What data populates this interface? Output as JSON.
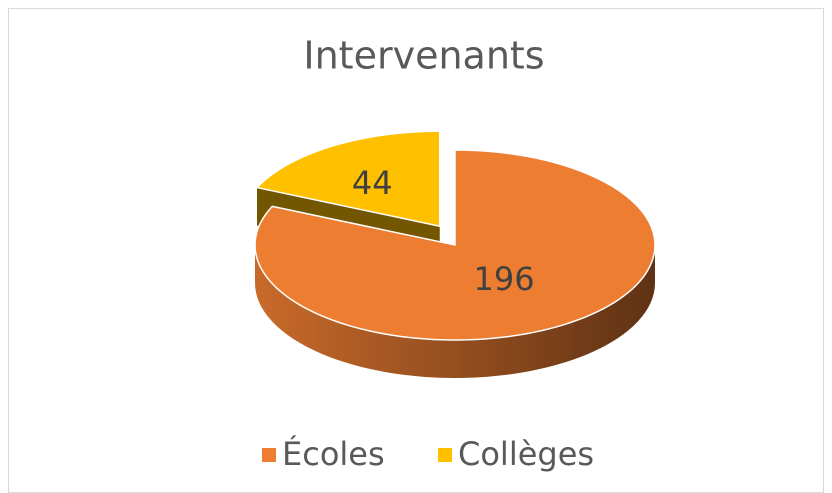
{
  "chart_data": {
    "type": "pie",
    "title": "Intervenants",
    "categories": [
      "Écoles",
      "Collèges"
    ],
    "values": [
      196,
      44
    ],
    "colors": [
      "#ED7D31",
      "#FFC000"
    ],
    "legend": "bottom"
  }
}
